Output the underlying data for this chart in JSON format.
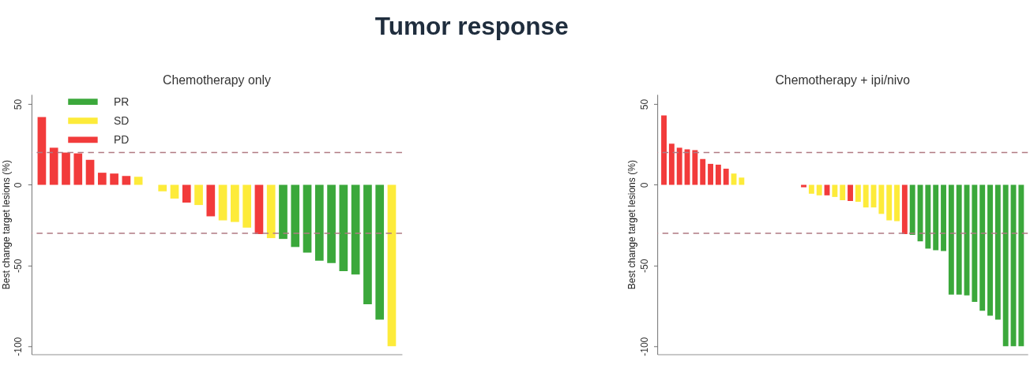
{
  "chart_data": [
    {
      "type": "bar",
      "title": "Chemotherapy only",
      "annotations": [
        "Tumor response"
      ],
      "ylabel": "Best change target lesions (%)",
      "categories": [
        null,
        null,
        null,
        null,
        null,
        null,
        null,
        null,
        null,
        null,
        null,
        null,
        null,
        null,
        null,
        null,
        null,
        null,
        null,
        null,
        null,
        null,
        null,
        null,
        null,
        null,
        null,
        null,
        null,
        null
      ],
      "series": [
        {
          "name": "PR",
          "color": "#3ba83b",
          "values": [
            null,
            null,
            null,
            null,
            null,
            null,
            null,
            null,
            null,
            null,
            null,
            null,
            null,
            null,
            null,
            null,
            null,
            null,
            null,
            null,
            -33.5,
            -38.5,
            -42,
            -47,
            -48.5,
            -53.5,
            -55.5,
            -74,
            -83.5,
            null
          ]
        },
        {
          "name": "SD",
          "color": "#fdeb3a",
          "values": [
            null,
            null,
            null,
            null,
            null,
            null,
            null,
            null,
            5,
            null,
            -4,
            -8.5,
            null,
            -12.5,
            null,
            -22,
            -23,
            -26.5,
            null,
            -33,
            null,
            null,
            null,
            null,
            null,
            null,
            null,
            null,
            null,
            -100
          ]
        },
        {
          "name": "PD",
          "color": "#f23b3b",
          "values": [
            42,
            23,
            20,
            19.5,
            15.5,
            7.5,
            7,
            5.5,
            null,
            null,
            null,
            null,
            -11,
            null,
            -19.5,
            null,
            null,
            null,
            -30.5,
            null,
            null,
            null,
            null,
            null,
            null,
            null,
            null,
            null,
            null,
            null
          ]
        }
      ],
      "ylim": [
        -105,
        56
      ],
      "yticks": [
        -100,
        -50,
        0,
        50
      ],
      "tick_labels": "y",
      "grid": false,
      "legend": "top left",
      "ref_lines": [
        {
          "axis": "y",
          "value": 20,
          "color": "#b07a82",
          "line_style": "dashed"
        },
        {
          "axis": "y",
          "value": -30,
          "color": "#b07a82",
          "line_style": "dashed"
        }
      ]
    },
    {
      "type": "bar",
      "title": "Chemotherapy + ipi/nivo",
      "ylabel": "Best change target lesions (%)",
      "categories": [
        null,
        null,
        null,
        null,
        null,
        null,
        null,
        null,
        null,
        null,
        null,
        null,
        null,
        null,
        null,
        null,
        null,
        null,
        null,
        null,
        null,
        null,
        null,
        null,
        null,
        null,
        null,
        null,
        null,
        null,
        null,
        null,
        null,
        null,
        null,
        null,
        null,
        null,
        null,
        null,
        null,
        null,
        null,
        null,
        null,
        null,
        null
      ],
      "series": [
        {
          "name": "PR",
          "color": "#3ba83b",
          "values": [
            null,
            null,
            null,
            null,
            null,
            null,
            null,
            null,
            null,
            null,
            null,
            null,
            null,
            null,
            null,
            null,
            null,
            null,
            null,
            null,
            null,
            null,
            null,
            null,
            null,
            null,
            null,
            null,
            null,
            null,
            null,
            null,
            -31,
            -35,
            -39.5,
            -40.5,
            -41,
            -68,
            -68,
            -68.5,
            -72.5,
            -78,
            -81,
            -83.5,
            -100,
            -100,
            -100
          ]
        },
        {
          "name": "SD",
          "color": "#fdeb3a",
          "values": [
            null,
            null,
            null,
            null,
            null,
            null,
            null,
            null,
            null,
            7,
            4.5,
            null,
            null,
            null,
            null,
            null,
            null,
            null,
            null,
            -5.5,
            -6.5,
            null,
            -7.5,
            -9.5,
            null,
            -10.5,
            -14,
            -14,
            -18,
            -22,
            -22.5,
            null,
            null,
            null,
            null,
            null,
            null,
            null,
            null,
            null,
            null,
            null,
            null,
            null,
            null,
            null,
            null
          ]
        },
        {
          "name": "PD",
          "color": "#f23b3b",
          "values": [
            43,
            25.5,
            23,
            22,
            21.5,
            16,
            13,
            12.5,
            10,
            null,
            null,
            null,
            null,
            null,
            null,
            null,
            null,
            null,
            -1.5,
            null,
            null,
            -6.5,
            null,
            null,
            -10,
            null,
            null,
            null,
            null,
            null,
            null,
            -30.5,
            null,
            null,
            null,
            null,
            null,
            null,
            null,
            null,
            null,
            null,
            null,
            null,
            null,
            null,
            null
          ]
        }
      ],
      "ylim": [
        -105,
        56
      ],
      "yticks": [
        -100,
        -50,
        0,
        50
      ],
      "tick_labels": "y",
      "grid": false,
      "legend": false,
      "ref_lines": [
        {
          "axis": "y",
          "value": 20,
          "color": "#b07a82",
          "line_style": "dashed"
        },
        {
          "axis": "y",
          "value": -30,
          "color": "#b07a82",
          "line_style": "dashed"
        }
      ]
    }
  ]
}
